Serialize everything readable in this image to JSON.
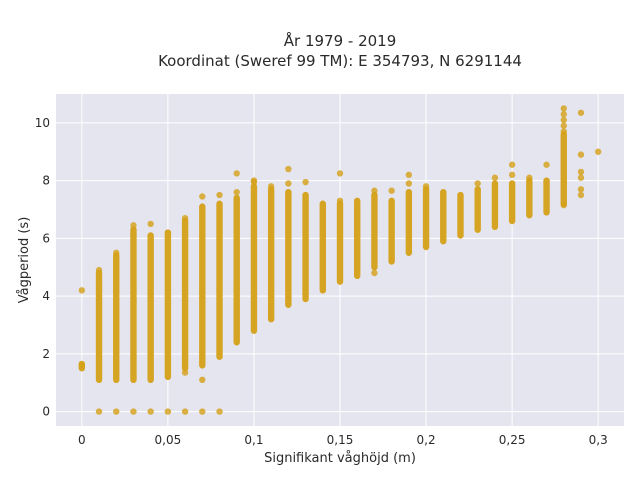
{
  "chart_data": {
    "type": "scatter",
    "title": "År 1979 - 2019",
    "subtitle": "Koordinat (Sweref 99 TM): E 354793, N 6291144",
    "xlabel": "Signifikant våghöjd (m)",
    "ylabel": "Vågperiod (s)",
    "xlim": [
      -0.015,
      0.315
    ],
    "ylim": [
      -0.5,
      11.0
    ],
    "x_ticks": [
      0,
      0.05,
      0.1,
      0.15,
      0.2,
      0.25,
      0.3
    ],
    "x_tick_labels": [
      "0",
      "0,05",
      "0,1",
      "0,15",
      "0,2",
      "0,25",
      "0,3"
    ],
    "y_ticks": [
      0,
      2,
      4,
      6,
      8,
      10
    ],
    "y_tick_labels": [
      "0",
      "2",
      "4",
      "6",
      "8",
      "10"
    ],
    "grid": true,
    "background": "#e5e5f0",
    "marker_color": "#d4a017",
    "columns": [
      {
        "x": 0.0,
        "y_min": 1.5,
        "y_max": 1.65
      },
      {
        "x": 0.01,
        "y_min": 1.1,
        "y_max": 4.8
      },
      {
        "x": 0.02,
        "y_min": 1.1,
        "y_max": 5.4
      },
      {
        "x": 0.03,
        "y_min": 1.1,
        "y_max": 6.3
      },
      {
        "x": 0.04,
        "y_min": 1.1,
        "y_max": 6.1
      },
      {
        "x": 0.05,
        "y_min": 1.2,
        "y_max": 6.2
      },
      {
        "x": 0.06,
        "y_min": 1.5,
        "y_max": 6.6
      },
      {
        "x": 0.07,
        "y_min": 1.6,
        "y_max": 7.1
      },
      {
        "x": 0.08,
        "y_min": 1.9,
        "y_max": 7.2
      },
      {
        "x": 0.09,
        "y_min": 2.4,
        "y_max": 7.4
      },
      {
        "x": 0.1,
        "y_min": 2.8,
        "y_max": 7.8
      },
      {
        "x": 0.11,
        "y_min": 3.2,
        "y_max": 7.7
      },
      {
        "x": 0.12,
        "y_min": 3.7,
        "y_max": 7.6
      },
      {
        "x": 0.13,
        "y_min": 3.9,
        "y_max": 7.5
      },
      {
        "x": 0.14,
        "y_min": 4.2,
        "y_max": 7.2
      },
      {
        "x": 0.15,
        "y_min": 4.5,
        "y_max": 7.2
      },
      {
        "x": 0.16,
        "y_min": 4.7,
        "y_max": 7.3
      },
      {
        "x": 0.17,
        "y_min": 5.0,
        "y_max": 7.5
      },
      {
        "x": 0.18,
        "y_min": 5.2,
        "y_max": 7.3
      },
      {
        "x": 0.19,
        "y_min": 5.5,
        "y_max": 7.6
      },
      {
        "x": 0.2,
        "y_min": 5.7,
        "y_max": 7.7
      },
      {
        "x": 0.21,
        "y_min": 5.9,
        "y_max": 7.6
      },
      {
        "x": 0.22,
        "y_min": 6.1,
        "y_max": 7.5
      },
      {
        "x": 0.23,
        "y_min": 6.3,
        "y_max": 7.7
      },
      {
        "x": 0.24,
        "y_min": 6.4,
        "y_max": 7.9
      },
      {
        "x": 0.25,
        "y_min": 6.6,
        "y_max": 7.9
      },
      {
        "x": 0.26,
        "y_min": 6.8,
        "y_max": 8.0
      },
      {
        "x": 0.27,
        "y_min": 6.9,
        "y_max": 8.0
      },
      {
        "x": 0.28,
        "y_min": 7.2,
        "y_max": 9.6
      }
    ],
    "outliers": [
      {
        "x": 0.0,
        "y": 4.2
      },
      {
        "x": 0.0,
        "y": 1.6
      },
      {
        "x": 0.01,
        "y": 4.9
      },
      {
        "x": 0.01,
        "y": 0.0
      },
      {
        "x": 0.02,
        "y": 5.5
      },
      {
        "x": 0.02,
        "y": 0.0
      },
      {
        "x": 0.03,
        "y": 6.45
      },
      {
        "x": 0.03,
        "y": 0.0
      },
      {
        "x": 0.04,
        "y": 6.5
      },
      {
        "x": 0.04,
        "y": 0.0
      },
      {
        "x": 0.05,
        "y": 0.0
      },
      {
        "x": 0.06,
        "y": 6.7
      },
      {
        "x": 0.06,
        "y": 1.35
      },
      {
        "x": 0.06,
        "y": 0.0
      },
      {
        "x": 0.07,
        "y": 7.45
      },
      {
        "x": 0.07,
        "y": 1.1
      },
      {
        "x": 0.07,
        "y": 0.0
      },
      {
        "x": 0.08,
        "y": 7.5
      },
      {
        "x": 0.08,
        "y": 0.0
      },
      {
        "x": 0.09,
        "y": 8.25
      },
      {
        "x": 0.09,
        "y": 7.6
      },
      {
        "x": 0.1,
        "y": 8.0
      },
      {
        "x": 0.1,
        "y": 7.95
      },
      {
        "x": 0.11,
        "y": 7.8
      },
      {
        "x": 0.12,
        "y": 8.4
      },
      {
        "x": 0.12,
        "y": 7.9
      },
      {
        "x": 0.13,
        "y": 7.95
      },
      {
        "x": 0.15,
        "y": 8.25
      },
      {
        "x": 0.15,
        "y": 7.3
      },
      {
        "x": 0.17,
        "y": 7.65
      },
      {
        "x": 0.17,
        "y": 4.8
      },
      {
        "x": 0.18,
        "y": 7.65
      },
      {
        "x": 0.19,
        "y": 8.2
      },
      {
        "x": 0.19,
        "y": 7.9
      },
      {
        "x": 0.2,
        "y": 7.8
      },
      {
        "x": 0.23,
        "y": 7.9
      },
      {
        "x": 0.24,
        "y": 8.1
      },
      {
        "x": 0.25,
        "y": 8.55
      },
      {
        "x": 0.25,
        "y": 8.2
      },
      {
        "x": 0.26,
        "y": 8.1
      },
      {
        "x": 0.27,
        "y": 8.55
      },
      {
        "x": 0.28,
        "y": 10.5
      },
      {
        "x": 0.28,
        "y": 10.3
      },
      {
        "x": 0.28,
        "y": 10.1
      },
      {
        "x": 0.28,
        "y": 9.9
      },
      {
        "x": 0.28,
        "y": 9.7
      },
      {
        "x": 0.28,
        "y": 7.15
      },
      {
        "x": 0.29,
        "y": 10.35
      },
      {
        "x": 0.29,
        "y": 8.9
      },
      {
        "x": 0.29,
        "y": 8.3
      },
      {
        "x": 0.29,
        "y": 8.1
      },
      {
        "x": 0.29,
        "y": 7.7
      },
      {
        "x": 0.29,
        "y": 7.5
      },
      {
        "x": 0.3,
        "y": 9.0
      }
    ]
  }
}
